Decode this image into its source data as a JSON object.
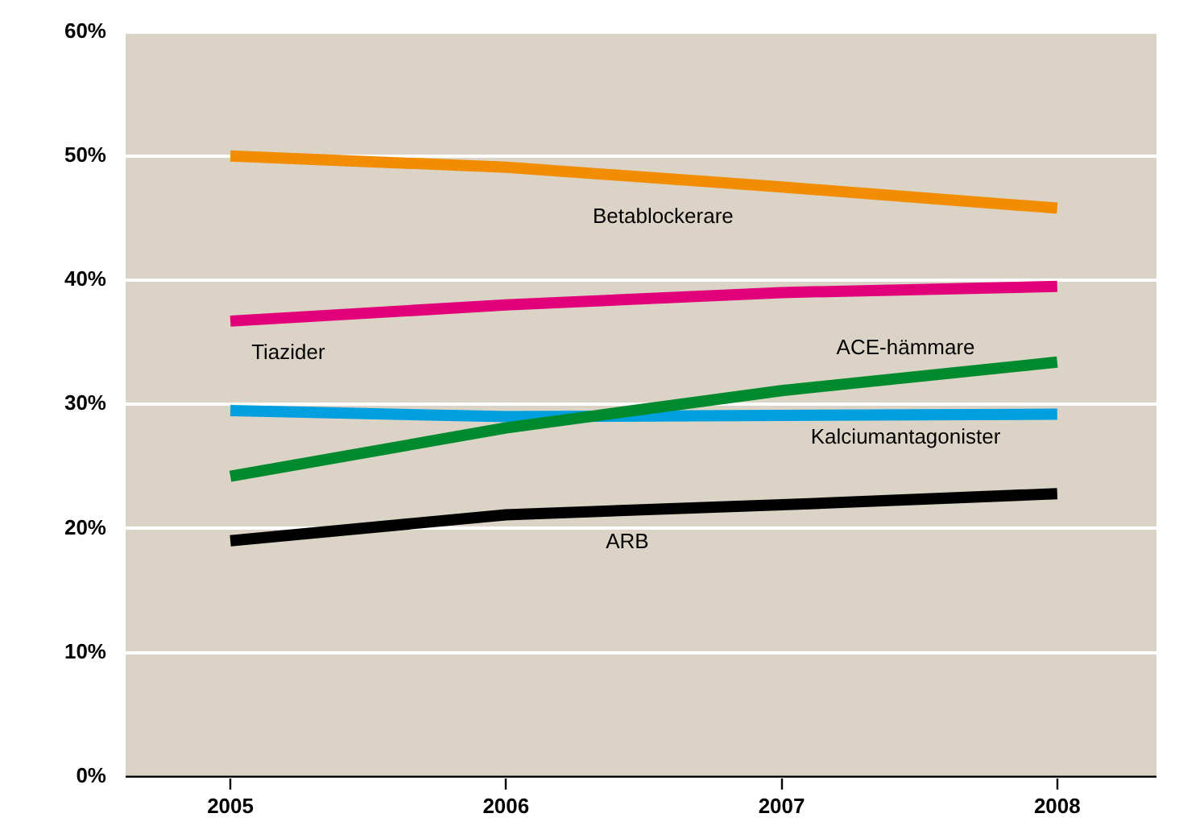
{
  "chart_data": {
    "type": "line",
    "x": [
      2005,
      2006,
      2007,
      2008
    ],
    "series": [
      {
        "name": "Betablockerare",
        "color": "#f28c00",
        "values": [
          50.0,
          49.1,
          47.5,
          45.8
        ]
      },
      {
        "name": "Tiazider",
        "color": "#e2007a",
        "values": [
          36.7,
          38.0,
          39.0,
          39.5
        ]
      },
      {
        "name": "ACE-hämmare",
        "color": "#008a2e",
        "values": [
          24.2,
          28.1,
          31.1,
          33.4
        ]
      },
      {
        "name": "Kalciumantagonister",
        "color": "#00a0e0",
        "values": [
          29.5,
          29.0,
          29.1,
          29.2
        ]
      },
      {
        "name": "ARB",
        "color": "#000000",
        "values": [
          19.0,
          21.1,
          21.9,
          22.8
        ]
      }
    ],
    "xlim": [
      2004.62,
      2008.36
    ],
    "xticks": [
      2005,
      2006,
      2007,
      2008
    ],
    "ylim": [
      0,
      60
    ],
    "yticks": [
      {
        "value": 0,
        "label": "0%"
      },
      {
        "value": 10,
        "label": "10%"
      },
      {
        "value": 20,
        "label": "20%"
      },
      {
        "value": 30,
        "label": "30%"
      },
      {
        "value": 40,
        "label": "40%"
      },
      {
        "value": 50,
        "label": "50%"
      },
      {
        "value": 60,
        "label": "60%"
      }
    ],
    "grid": "y",
    "legend": false,
    "marker": "none",
    "line_style": "solid"
  }
}
